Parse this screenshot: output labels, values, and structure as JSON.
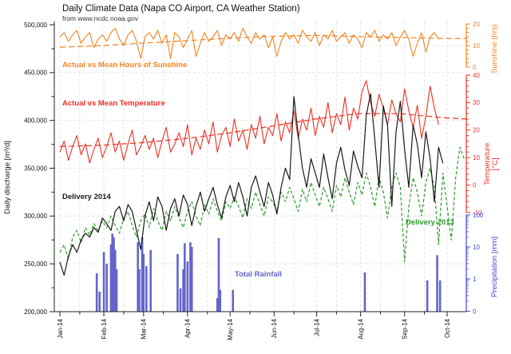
{
  "chart_data": {
    "type": "line",
    "title": "Daily Climate Data (Napa CO Airport, CA Weather Station)",
    "subtitle": "from www.ncdc.noaa.gov",
    "colors": {
      "sunshine": "#F6821F",
      "temperature": "#ED3023",
      "delivery_2014": "#1a1a1a",
      "delivery_2013": "#2E9B2E",
      "rainfall_bar": "#6464CC",
      "precip_axis": "#4444DD",
      "axis": "#222222",
      "grid": "#dcdcdc"
    },
    "x_axis": {
      "tick_labels": [
        "Jan-14",
        "Feb-14",
        "Mar-14",
        "Apr-14",
        "May-14",
        "Jun-14",
        "Jul-14",
        "Aug-14",
        "Sep-14",
        "Oct-14"
      ],
      "tick_days": [
        0,
        31,
        59,
        90,
        120,
        151,
        181,
        212,
        243,
        273
      ],
      "minor_day_offset": 14,
      "days_span": 290
    },
    "y_left": {
      "label": "Daily discharge [m³/d]",
      "min": 200000,
      "max": 500000,
      "tick_values": [
        200000,
        250000,
        300000,
        350000,
        400000,
        450000,
        500000
      ],
      "tick_labels": [
        "200,000",
        "250,000",
        "300,000",
        "350,000",
        "400,000",
        "450,000",
        "500,000"
      ],
      "minor_step": 25000,
      "grid": "on"
    },
    "y_sunshine": {
      "label": "Sunshine (hrs)",
      "min": 0,
      "max": 20,
      "tick_values": [
        0,
        10,
        20
      ],
      "minor_step": 2
    },
    "y_temperature": {
      "label": "Temperature [°C]",
      "label_lines": [
        "Temperature",
        "[°C]"
      ],
      "min": -10,
      "max": 40,
      "tick_values": [
        -10,
        0,
        10,
        20,
        30,
        40
      ],
      "minor_step": 2
    },
    "y_precip": {
      "label": "Precipitation [mm]",
      "scale": "log",
      "tick_values": [
        100,
        10,
        1
      ],
      "tick_labels": [
        "100",
        "10",
        "1"
      ],
      "zero_label": "0"
    },
    "series_labels": {
      "sunshine": "Actual vs Mean Hours of Sunshine",
      "temperature": "Actual vs Mean Temperature",
      "delivery_2014": "Delivery 2014",
      "delivery_2013": "Delivery 2013",
      "rainfall": "Total Rainfall"
    },
    "series": {
      "sunshine_actual": {
        "name": "Actual Hours of Sunshine",
        "unit": "hrs",
        "start_day": 0,
        "step_days": 3,
        "values": [
          14,
          16,
          12,
          15,
          17,
          11,
          14,
          16,
          9,
          13,
          15,
          12,
          16,
          18,
          13,
          10,
          15,
          17,
          12,
          4,
          14,
          16,
          13,
          17,
          11,
          15,
          4,
          16,
          14,
          9,
          13,
          17,
          5,
          11,
          16,
          12,
          14,
          17,
          10,
          15,
          13,
          16,
          12,
          18,
          14,
          11,
          16,
          13,
          15,
          9,
          14,
          5,
          12,
          16,
          13,
          15,
          11,
          17,
          14,
          12,
          16,
          10,
          15,
          13,
          17,
          12,
          14,
          16,
          11,
          15,
          13,
          9,
          16,
          14,
          17,
          12,
          15,
          13,
          16,
          10,
          14,
          17,
          13,
          5,
          11,
          16,
          7,
          14,
          16,
          13
        ]
      },
      "sunshine_mean": {
        "name": "Mean Hours of Sunshine",
        "unit": "hrs",
        "style": "dashed",
        "days": [
          0,
          30,
          60,
          90,
          120,
          150,
          180,
          210,
          240,
          270,
          287
        ],
        "values": [
          9.2,
          10.0,
          11.2,
          12.3,
          13.4,
          14.3,
          14.7,
          14.2,
          13.7,
          13.3,
          13.3
        ]
      },
      "temperature_actual": {
        "name": "Actual Temperature",
        "unit": "degC",
        "start_day": 0,
        "step_days": 3,
        "values": [
          12,
          16,
          9,
          14,
          18,
          11,
          15,
          8,
          13,
          17,
          10,
          14,
          19,
          12,
          16,
          9,
          15,
          20,
          11,
          14,
          18,
          13,
          17,
          10,
          16,
          21,
          12,
          15,
          19,
          14,
          22,
          11,
          17,
          13,
          20,
          15,
          23,
          12,
          18,
          21,
          14,
          24,
          16,
          20,
          13,
          22,
          17,
          25,
          15,
          21,
          18,
          26,
          16,
          23,
          19,
          27,
          17,
          24,
          20,
          28,
          18,
          25,
          21,
          30,
          19,
          26,
          22,
          32,
          20,
          28,
          24,
          34,
          38,
          30,
          25,
          33,
          28,
          22,
          31,
          26,
          23,
          35,
          27,
          21,
          29,
          17,
          25,
          36,
          28,
          22
        ]
      },
      "temperature_mean": {
        "name": "Mean Temperature",
        "unit": "degC",
        "style": "dashed",
        "days": [
          0,
          30,
          60,
          90,
          120,
          150,
          180,
          210,
          240,
          270,
          287
        ],
        "values": [
          14,
          14.5,
          15.5,
          17,
          19,
          21.5,
          24,
          26,
          26,
          24.5,
          24
        ]
      },
      "delivery_2014": {
        "name": "Delivery 2014",
        "unit": "x1000 m3/d",
        "start_day": 0,
        "step_days": 3,
        "values_k": [
          252,
          238,
          258,
          270,
          262,
          275,
          282,
          278,
          288,
          283,
          298,
          292,
          285,
          305,
          310,
          295,
          312,
          305,
          285,
          265,
          300,
          315,
          295,
          320,
          310,
          285,
          308,
          318,
          300,
          322,
          312,
          290,
          310,
          325,
          305,
          318,
          330,
          312,
          298,
          320,
          332,
          315,
          335,
          320,
          300,
          330,
          342,
          325,
          310,
          335,
          322,
          302,
          330,
          350,
          338,
          425,
          385,
          350,
          330,
          360,
          345,
          330,
          365,
          340,
          318,
          355,
          372,
          348,
          332,
          368,
          352,
          340,
          405,
          428,
          380,
          330,
          415,
          395,
          310,
          388,
          420,
          370,
          330,
          395,
          375,
          340,
          388,
          360,
          315,
          372,
          355
        ]
      },
      "delivery_2013": {
        "name": "Delivery 2013",
        "unit": "x1000 m3/d",
        "style": "dashed",
        "start_day": 0,
        "step_days": 3,
        "values_k": [
          262,
          270,
          255,
          278,
          285,
          272,
          288,
          280,
          292,
          285,
          295,
          288,
          300,
          290,
          282,
          298,
          305,
          290,
          278,
          295,
          302,
          288,
          308,
          295,
          285,
          305,
          295,
          310,
          298,
          288,
          305,
          315,
          300,
          290,
          312,
          302,
          318,
          305,
          295,
          315,
          308,
          320,
          310,
          298,
          318,
          308,
          325,
          312,
          300,
          320,
          315,
          305,
          325,
          315,
          330,
          318,
          305,
          328,
          315,
          335,
          322,
          310,
          330,
          318,
          305,
          332,
          320,
          340,
          325,
          312,
          335,
          322,
          345,
          330,
          310,
          340,
          325,
          298,
          330,
          345,
          330,
          252,
          310,
          340,
          325,
          300,
          335,
          350,
          330,
          270,
          345,
          310,
          275,
          340,
          372,
          360
        ]
      },
      "rainfall": {
        "name": "Total Rainfall",
        "unit": "mm",
        "type": "bar",
        "points": [
          [
            26,
            1.5
          ],
          [
            28,
            0.4
          ],
          [
            31,
            7
          ],
          [
            33,
            3
          ],
          [
            36,
            12
          ],
          [
            37,
            26
          ],
          [
            38,
            20
          ],
          [
            39,
            8
          ],
          [
            40,
            2
          ],
          [
            55,
            14
          ],
          [
            56,
            2
          ],
          [
            58,
            20
          ],
          [
            59,
            6
          ],
          [
            61,
            2.5
          ],
          [
            64,
            8
          ],
          [
            83,
            6
          ],
          [
            85,
            0.5
          ],
          [
            87,
            2
          ],
          [
            88,
            13
          ],
          [
            90,
            3.5
          ],
          [
            92,
            14
          ],
          [
            93,
            10
          ],
          [
            111,
            0.25
          ],
          [
            112,
            19
          ],
          [
            113,
            0.45
          ],
          [
            122,
            0.45
          ],
          [
            215,
            1.6
          ],
          [
            259,
            0.9
          ],
          [
            266,
            5.5
          ],
          [
            268,
            0.9
          ]
        ]
      }
    }
  }
}
